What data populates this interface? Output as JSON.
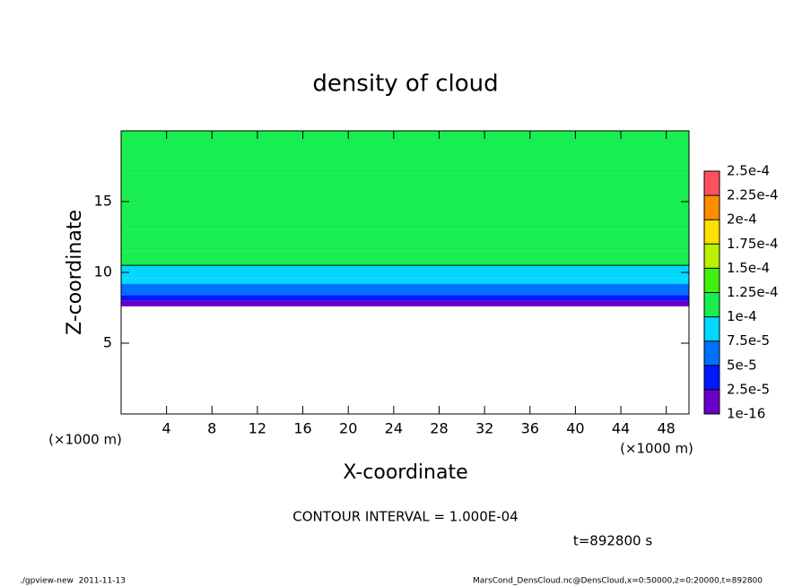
{
  "chart_data": {
    "type": "layers",
    "title": "density of cloud",
    "xlabel": "X-coordinate",
    "ylabel": "Z-coordinate",
    "y_unit": "(×1000 m)",
    "x_unit": "(×1000 m)",
    "xlim": [
      0,
      50
    ],
    "xticks": [
      4,
      8,
      12,
      16,
      20,
      24,
      28,
      32,
      36,
      40,
      44,
      48
    ],
    "ylim": [
      0,
      20
    ],
    "yticks": [
      5,
      10,
      15
    ],
    "z": [
      7.6,
      8.0,
      8.4,
      8.8,
      9.2,
      9.6,
      10.0,
      10.5,
      11.5,
      13,
      15,
      17,
      20
    ],
    "values": [
      2e-05,
      3.5e-05,
      5e-05,
      6.5e-05,
      8e-05,
      9e-05,
      9.8e-05,
      0.000105,
      0.000112,
      0.00012,
      0.000122,
      0.000118
    ],
    "contour_level": 0.0001,
    "colorbar": {
      "levels": [
        {
          "value": 1e-16,
          "label": "1e-16"
        },
        {
          "value": 2.5e-05,
          "label": "2.5e-5"
        },
        {
          "value": 5e-05,
          "label": "5e-5"
        },
        {
          "value": 7.5e-05,
          "label": "7.5e-5"
        },
        {
          "value": 0.0001,
          "label": "1e-4"
        },
        {
          "value": 0.000125,
          "label": "1.25e-4"
        },
        {
          "value": 0.00015,
          "label": "1.5e-4"
        },
        {
          "value": 0.000175,
          "label": "1.75e-4"
        },
        {
          "value": 0.0002,
          "label": "2e-4"
        },
        {
          "value": 0.000225,
          "label": "2.25e-4"
        },
        {
          "value": 0.00025,
          "label": "2.5e-4"
        }
      ],
      "colors": [
        "#6a00c8",
        "#0018ff",
        "#0070ff",
        "#00d8ff",
        "#18ee50",
        "#40f010",
        "#b8f000",
        "#ffe000",
        "#ff8c00",
        "#ff5060"
      ]
    },
    "contour_note": "CONTOUR INTERVAL = 1.000E-04",
    "time_note": "t=892800 s",
    "footer_left": "./gpview-new  2011-11-13",
    "footer_right": "MarsCond_DensCloud.nc@DensCloud,x=0:50000,z=0:20000,t=892800"
  }
}
